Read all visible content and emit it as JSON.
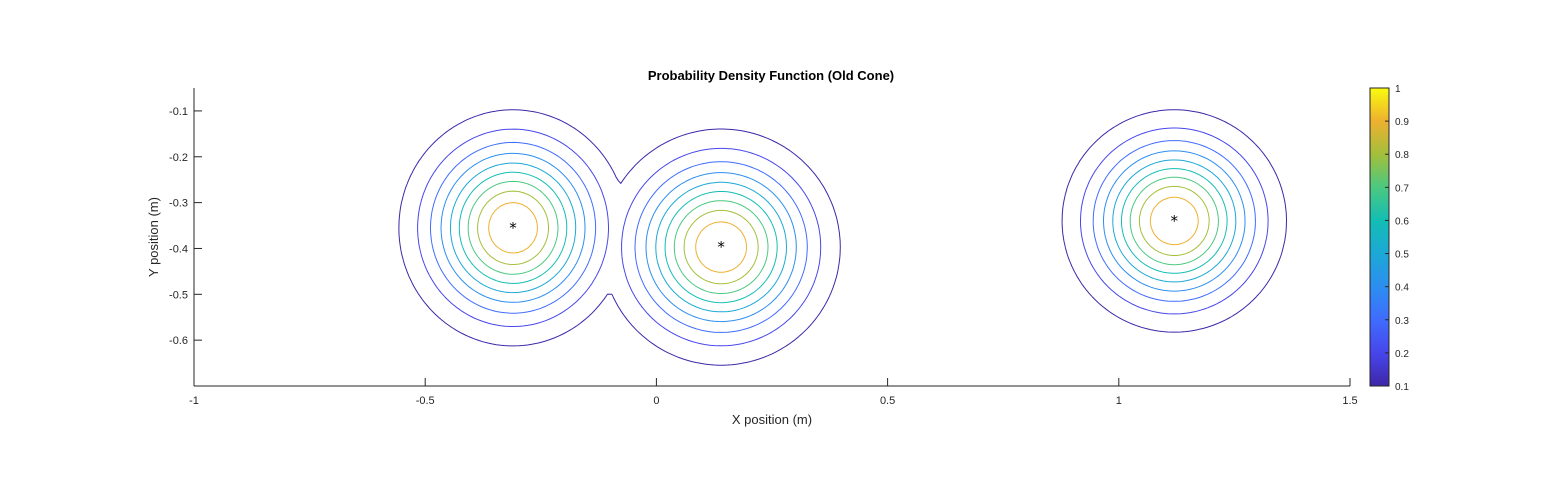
{
  "chart_data": {
    "type": "contour",
    "title": "Probability Density Function (Old Cone)",
    "xlabel": "X position (m)",
    "ylabel": "Y position (m)",
    "xlim": [
      -1,
      1.5
    ],
    "ylim": [
      -0.7,
      -0.05
    ],
    "x_ticks": [
      -1,
      -0.5,
      0,
      0.5,
      1,
      1.5
    ],
    "x_tick_labels": [
      "-1",
      "-0.5",
      "0",
      "0.5",
      "1",
      "1.5"
    ],
    "y_ticks": [
      -0.1,
      -0.2,
      -0.3,
      -0.4,
      -0.5,
      -0.6
    ],
    "y_tick_labels": [
      "-0.1",
      "-0.2",
      "-0.3",
      "-0.4",
      "-0.5",
      "-0.6"
    ],
    "grid": false,
    "colormap": "parula",
    "colorbar": {
      "limits": [
        0.1,
        1
      ],
      "ticks": [
        0.1,
        0.2,
        0.3,
        0.4,
        0.5,
        0.6,
        0.7,
        0.8,
        0.9,
        1
      ],
      "tick_labels": [
        "0.1",
        "0.2",
        "0.3",
        "0.4",
        "0.5",
        "0.6",
        "0.7",
        "0.8",
        "0.9",
        "1"
      ],
      "colors": [
        "#3e26a8",
        "#4746eb",
        "#3f6cfe",
        "#2c8ef0",
        "#1ca8d6",
        "#13bdb4",
        "#4bc880",
        "#a3bf3b",
        "#eeb02f",
        "#f9fb0e"
      ]
    },
    "contour_levels": [
      0.1,
      0.2,
      0.3,
      0.4,
      0.5,
      0.6,
      0.7,
      0.8,
      0.9
    ],
    "peaks": [
      {
        "x": -0.31,
        "y": -0.355,
        "sigma_x": 0.115,
        "sigma_y": 0.12
      },
      {
        "x": 0.14,
        "y": -0.397,
        "sigma_x": 0.12,
        "sigma_y": 0.12
      },
      {
        "x": 1.12,
        "y": -0.34,
        "sigma_x": 0.113,
        "sigma_y": 0.113
      }
    ],
    "markers": {
      "symbol": "*",
      "color": "#000000"
    }
  }
}
